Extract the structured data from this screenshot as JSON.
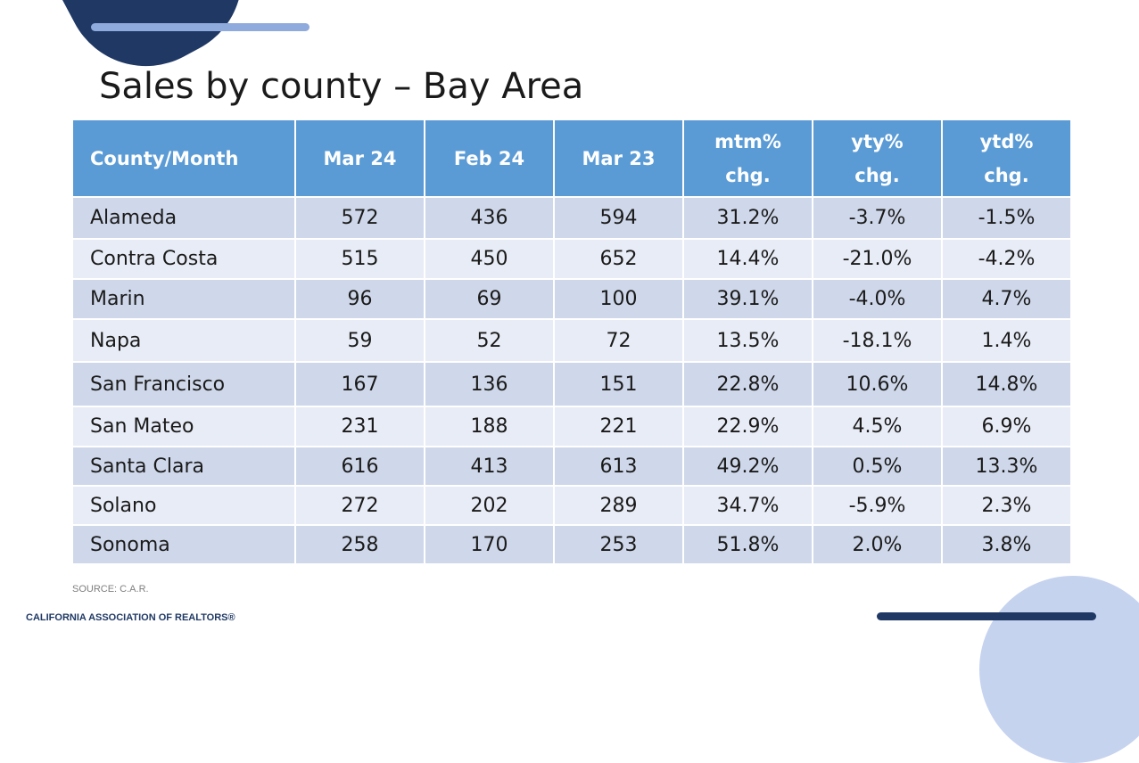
{
  "slide": {
    "title": "Sales by county – Bay Area",
    "source": "SOURCE: C.A.R.",
    "logo_text": "CALIFORNIA ASSOCIATION OF REALTORS®"
  },
  "table": {
    "headers": [
      [
        "County/Month"
      ],
      [
        "Mar 24"
      ],
      [
        "Feb 24"
      ],
      [
        "Mar 23"
      ],
      [
        "mtm%",
        "chg."
      ],
      [
        "yty%",
        "chg."
      ],
      [
        "ytd%",
        "chg."
      ]
    ],
    "rows": [
      [
        "Alameda",
        "572",
        "436",
        "594",
        "31.2%",
        "-3.7%",
        "-1.5%"
      ],
      [
        "Contra Costa",
        "515",
        "450",
        "652",
        "14.4%",
        "-21.0%",
        "-4.2%"
      ],
      [
        "Marin",
        "96",
        "69",
        "100",
        "39.1%",
        "-4.0%",
        "4.7%"
      ],
      [
        "Napa",
        "59",
        "52",
        "72",
        "13.5%",
        "-18.1%",
        "1.4%"
      ],
      [
        "San Francisco",
        "167",
        "136",
        "151",
        "22.8%",
        "10.6%",
        "14.8%"
      ],
      [
        "San Mateo",
        "231",
        "188",
        "221",
        "22.9%",
        "4.5%",
        "6.9%"
      ],
      [
        "Santa Clara",
        "616",
        "413",
        "613",
        "49.2%",
        "0.5%",
        "13.3%"
      ],
      [
        "Solano",
        "272",
        "202",
        "289",
        "34.7%",
        "-5.9%",
        "2.3%"
      ],
      [
        "Sonoma",
        "258",
        "170",
        "253",
        "51.8%",
        "2.0%",
        "3.8%"
      ]
    ]
  },
  "colors": {
    "header_bg": "#5b9bd5",
    "row_odd": "#cfd8ea",
    "row_even": "#e8ecf6",
    "navy": "#1f3864",
    "light_blue": "#8faadc"
  }
}
